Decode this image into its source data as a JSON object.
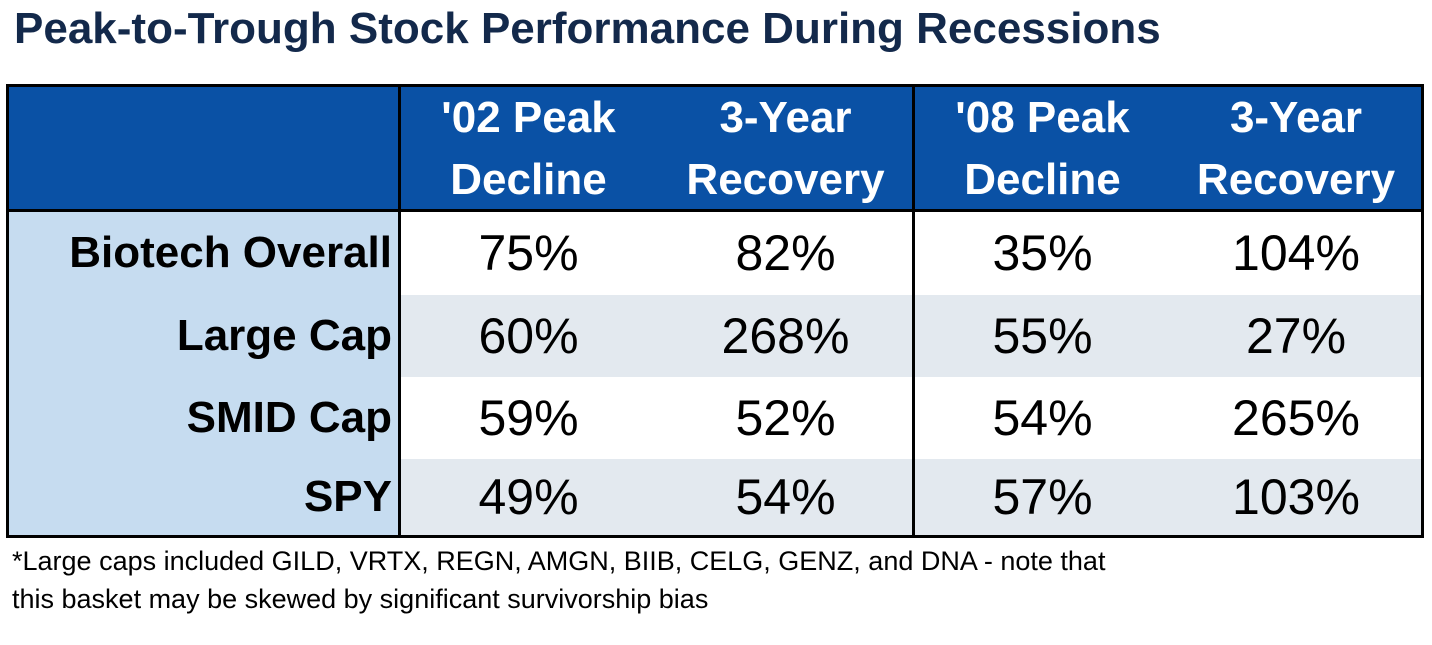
{
  "title": "Peak-to-Trough Stock Performance During Recessions",
  "chart_data": {
    "type": "table",
    "columns": [
      {
        "line1": "",
        "line2": ""
      },
      {
        "line1": "'02 Peak",
        "line2": "Decline"
      },
      {
        "line1": "3-Year",
        "line2": "Recovery"
      },
      {
        "line1": "'08 Peak",
        "line2": "Decline"
      },
      {
        "line1": "3-Year",
        "line2": "Recovery"
      }
    ],
    "rows": [
      {
        "label": "Biotech Overall",
        "values": [
          "75%",
          "82%",
          "35%",
          "104%"
        ]
      },
      {
        "label": "Large Cap",
        "values": [
          "60%",
          "268%",
          "55%",
          "27%"
        ]
      },
      {
        "label": "SMID Cap",
        "values": [
          "59%",
          "52%",
          "54%",
          "265%"
        ]
      },
      {
        "label": "SPY",
        "values": [
          "49%",
          "54%",
          "57%",
          "103%"
        ]
      }
    ]
  },
  "footnote": {
    "line1": "*Large caps included GILD, VRTX, REGN, AMGN, BIIB, CELG, GENZ, and DNA - note that",
    "line2": "this basket may be skewed by significant survivorship bias"
  },
  "colors": {
    "title": "#13294b",
    "header_bg": "#0a51a5",
    "header_text": "#ffffff",
    "row_label_bg": "#c6dcf0",
    "row_shade": "#e3e9ef",
    "border": "#000000"
  }
}
